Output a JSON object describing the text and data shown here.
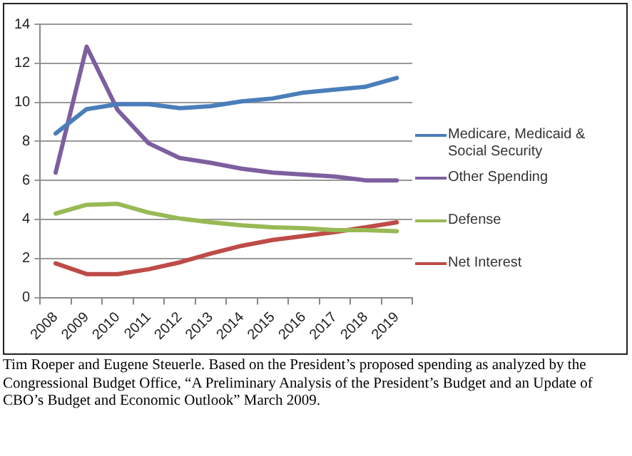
{
  "chart_data": {
    "type": "line",
    "categories": [
      "2008",
      "2009",
      "2010",
      "2011",
      "2012",
      "2013",
      "2014",
      "2015",
      "2016",
      "2017",
      "2018",
      "2019"
    ],
    "series": [
      {
        "name": "Medicare, Medicaid & Social Security",
        "color": "#4a7ebb",
        "values": [
          8.4,
          9.65,
          9.9,
          9.9,
          9.7,
          9.8,
          10.05,
          10.2,
          10.5,
          10.65,
          10.8,
          11.25
        ]
      },
      {
        "name": "Other Spending",
        "color": "#7d5fa0",
        "values": [
          6.4,
          12.85,
          9.6,
          7.9,
          7.15,
          6.9,
          6.6,
          6.4,
          6.3,
          6.2,
          6.0,
          6.0
        ]
      },
      {
        "name": "Defense",
        "color": "#98b954",
        "values": [
          4.3,
          4.75,
          4.8,
          4.35,
          4.05,
          3.85,
          3.7,
          3.6,
          3.55,
          3.45,
          3.45,
          3.4
        ]
      },
      {
        "name": "Net Interest",
        "color": "#be4b48",
        "values": [
          1.75,
          1.2,
          1.2,
          1.45,
          1.8,
          2.25,
          2.65,
          2.95,
          3.15,
          3.35,
          3.6,
          3.85
        ]
      }
    ],
    "ylim": [
      0,
      14
    ],
    "yticks": [
      0,
      2,
      4,
      6,
      8,
      10,
      12,
      14
    ],
    "grid": "y",
    "legend": "right",
    "marker": "none",
    "line_style": "solid",
    "annotations": [
      "Tim Roeper and Eugene Steuerle.  Based on the President’s proposed spending as analyzed by the Congressional Budget Office, “A Preliminary Analysis of the President’s Budget and an Update of CBO’s Budget and Economic Outlook” March 2009."
    ]
  }
}
